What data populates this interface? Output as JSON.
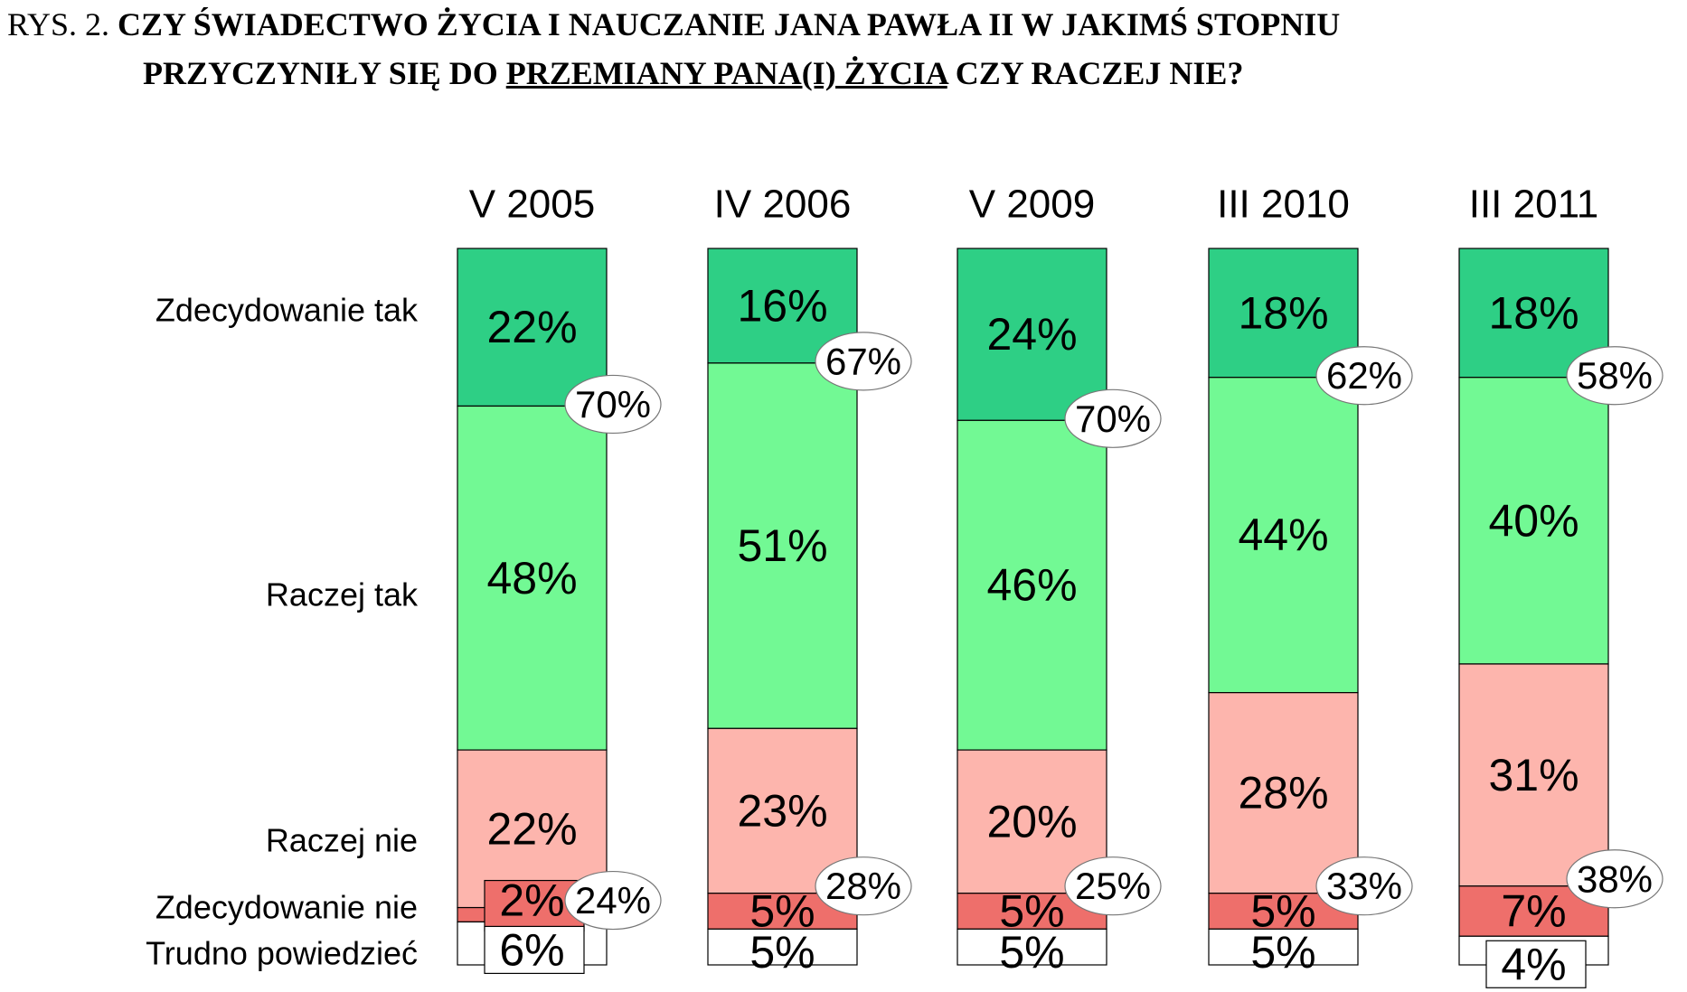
{
  "title": {
    "prefix": "RYS. 2.",
    "line1": "CZY ŚWIADECTWO ŻYCIA I NAUCZANIE JANA PAWŁA II W JAKIMŚ STOPNIU",
    "line2_start": "PRZYCZYNIŁY SIĘ DO ",
    "line2_underlined": "PRZEMIANY PANA(I) ŻYCIA",
    "line2_end": " CZY RACZEJ NIE?"
  },
  "colors": {
    "zdecydowanie_tak": "#2ecf85",
    "raczej_tak": "#72f994",
    "raczej_nie": "#fdb5ad",
    "zdecydowanie_nie": "#ee6f6b",
    "trudno_powiedziec": "#ffffff"
  },
  "chart_data": {
    "type": "bar",
    "stacked": true,
    "categories": [
      "V 2005",
      "IV 2006",
      "V 2009",
      "III 2010",
      "III 2011"
    ],
    "category_labels": [
      "Zdecydowanie tak",
      "Raczej tak",
      "Raczej nie",
      "Zdecydowanie nie",
      "Trudno powiedzieć"
    ],
    "series": [
      {
        "name": "Zdecydowanie tak",
        "values": [
          22,
          16,
          24,
          18,
          18
        ]
      },
      {
        "name": "Raczej tak",
        "values": [
          48,
          51,
          46,
          44,
          40
        ]
      },
      {
        "name": "Raczej nie",
        "values": [
          22,
          23,
          20,
          28,
          31
        ]
      },
      {
        "name": "Zdecydowanie nie",
        "values": [
          2,
          5,
          5,
          5,
          7
        ]
      },
      {
        "name": "Trudno powiedzieć",
        "values": [
          6,
          5,
          5,
          5,
          4
        ]
      }
    ],
    "total_yes": [
      70,
      67,
      70,
      62,
      58
    ],
    "total_no": [
      24,
      28,
      25,
      33,
      38
    ],
    "unit": "%"
  }
}
